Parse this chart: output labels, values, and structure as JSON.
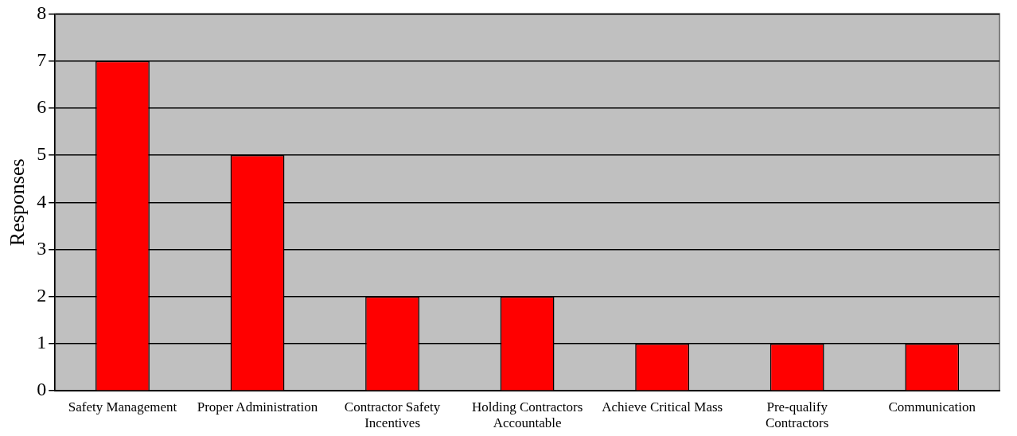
{
  "chart_data": {
    "type": "bar",
    "ylabel": "Responses",
    "categories": [
      "Safety Management",
      "Proper Administration",
      "Contractor Safety Incentives",
      "Holding Contractors Accountable",
      "Achieve Critical Mass",
      "Pre-qualify Contractors",
      "Communication"
    ],
    "values": [
      7,
      5,
      2,
      2,
      1,
      1,
      1
    ],
    "color": "#ff0000",
    "ylim": [
      0,
      8
    ],
    "yticks": [
      0,
      1,
      2,
      3,
      4,
      5,
      6,
      7,
      8
    ],
    "grid": "y",
    "legend": false
  }
}
